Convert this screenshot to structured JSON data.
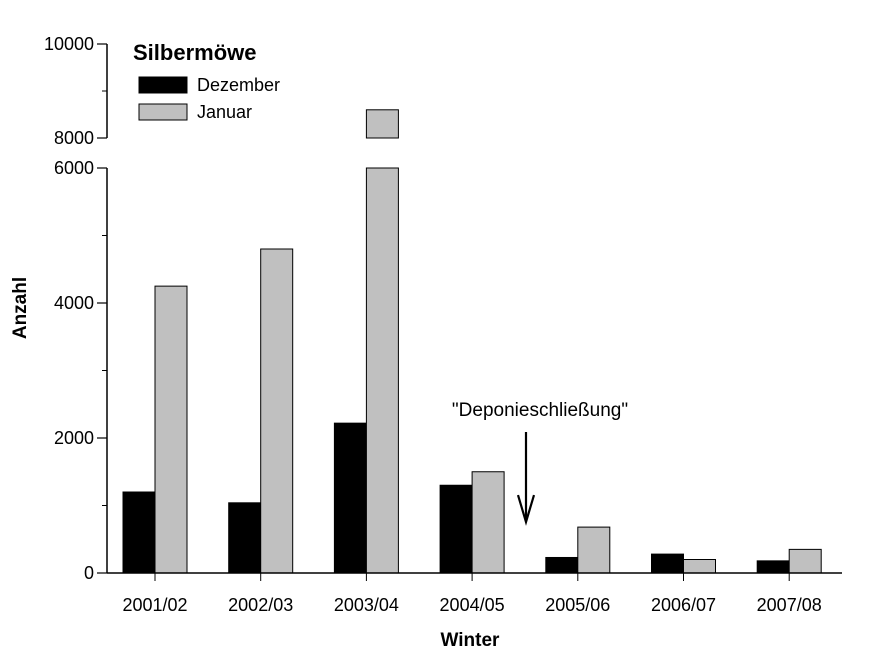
{
  "chart_data": {
    "type": "bar",
    "title": "Silbermöwe",
    "xlabel": "Winter",
    "ylabel": "Anzahl",
    "categories": [
      "2001/02",
      "2002/03",
      "2003/04",
      "2004/05",
      "2005/06",
      "2006/07",
      "2007/08"
    ],
    "series": [
      {
        "name": "Dezember",
        "color": "#000000",
        "values": [
          1200,
          1040,
          2220,
          1300,
          230,
          280,
          180
        ]
      },
      {
        "name": "Januar",
        "color": "#c0c0c0",
        "values": [
          4250,
          4800,
          8600,
          1500,
          680,
          200,
          350
        ]
      }
    ],
    "ylim": [
      0,
      10000
    ],
    "axis_break": {
      "from": 6000,
      "to": 8000
    },
    "yticks_major": [
      "0",
      "2000",
      "4000",
      "6000",
      "8000",
      "10000"
    ],
    "annotation": {
      "text": "\"Deponieschließung\"",
      "points_to": "between 2004/05 and 2005/06"
    },
    "legend_position": "top-left",
    "grid": false
  }
}
